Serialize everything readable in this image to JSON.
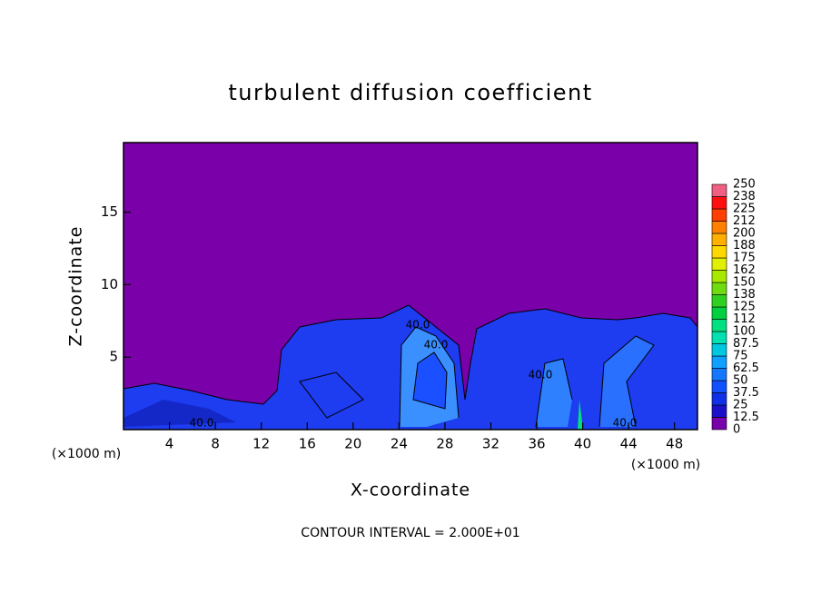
{
  "chart_data": {
    "type": "contour",
    "title": "turbulent diffusion coefficient",
    "x_label": "X-coordinate",
    "y_label": "Z-coordinate",
    "x_unit_labels": [
      "(×1000 m)",
      "(×1000 m)"
    ],
    "footnote": "CONTOUR INTERVAL = 2.000E+01",
    "contour_labels": [
      "40.0",
      "40.0",
      "40.0",
      "40.0",
      "40.0"
    ],
    "xlim": [
      0,
      50
    ],
    "ylim": [
      0,
      19.8
    ],
    "xticks": [
      4,
      8,
      12,
      16,
      20,
      24,
      28,
      32,
      36,
      40,
      44,
      48
    ],
    "yticks": [
      5,
      10,
      15
    ],
    "colorbar": {
      "levels": [
        0,
        12.5,
        25,
        37.5,
        50,
        62.5,
        75,
        87.5,
        100,
        112,
        125,
        138,
        150,
        162,
        175,
        188,
        200,
        212,
        225,
        238,
        250
      ],
      "colors": [
        "#7700aa",
        "#1a10c8",
        "#1030e8",
        "#1050ff",
        "#1478ff",
        "#10a0ff",
        "#00c8e0",
        "#00e0b0",
        "#00e080",
        "#00d040",
        "#30d020",
        "#70dc10",
        "#a8e800",
        "#e0f000",
        "#ffd800",
        "#ffb000",
        "#ff8000",
        "#ff4000",
        "#ff1010",
        "#f06080"
      ]
    }
  }
}
